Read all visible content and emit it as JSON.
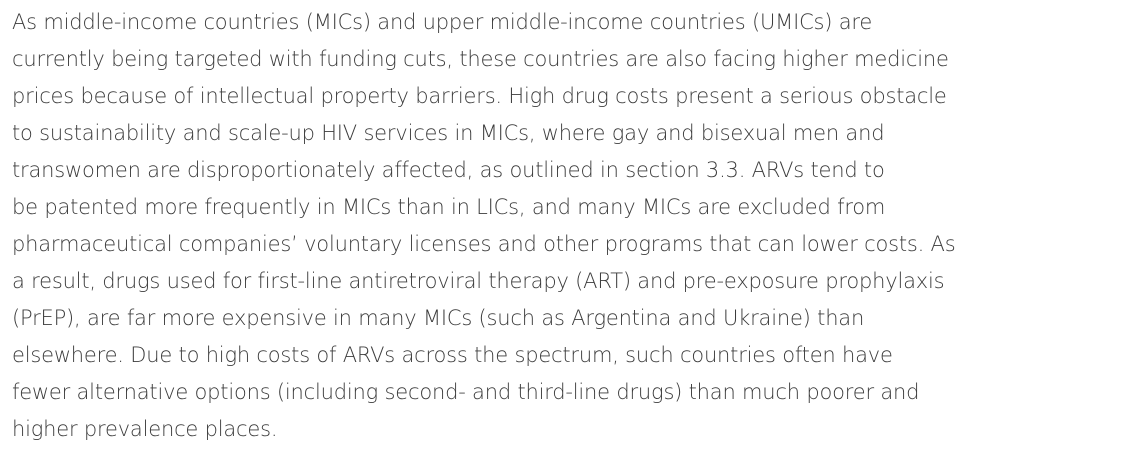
{
  "paragraph": {
    "lines": [
      "As middle-income countries (MICs) and upper middle-income countries (UMICs) are",
      "currently being targeted with funding cuts, these countries are also facing higher medicine",
      "prices because of intellectual property barriers. High drug costs present a serious obstacle",
      "to sustainability and scale-up HIV services in MICs, where gay and bisexual men and",
      "transwomen are disproportionately affected, as outlined in section 3.3. ARVs tend to",
      "be patented more frequently in MICs than in LICs, and many MICs are excluded from",
      "pharmaceutical companies’ voluntary licenses and other programs that can lower costs. As",
      "a result, drugs used for first-line antiretroviral therapy (ART) and pre-exposure prophylaxis",
      "(PrEP), are far more expensive in many MICs (such as Argentina and Ukraine) than",
      "elsewhere. Due to high costs of ARVs across the spectrum, such countries often have",
      "fewer alternative options (including second- and third-line drugs) than much poorer and",
      "higher prevalence places."
    ]
  }
}
